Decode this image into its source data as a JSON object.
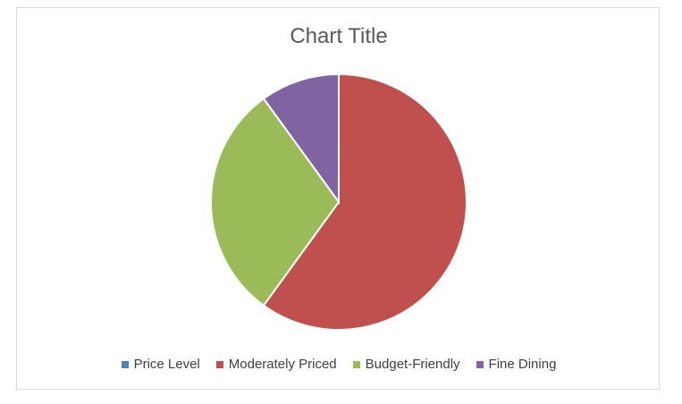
{
  "chart_data": {
    "type": "pie",
    "title": "Chart Title",
    "legend_position": "bottom",
    "series_name": "Price Level",
    "categories": [
      "Price Level",
      "Moderately Priced",
      "Budget-Friendly",
      "Fine Dining"
    ],
    "values": [
      0,
      60,
      30,
      10
    ],
    "colors": [
      "#4f81bd",
      "#c0504d",
      "#9bbb59",
      "#8064a2"
    ]
  }
}
